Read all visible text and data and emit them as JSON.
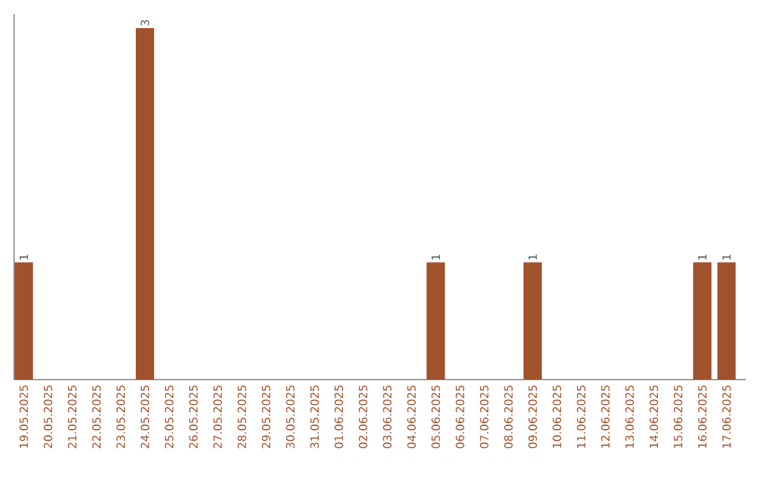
{
  "chart_data": {
    "type": "bar",
    "categories": [
      "19.05.2025",
      "20.05.2025",
      "21.05.2025",
      "22.05.2025",
      "23.05.2025",
      "24.05.2025",
      "25.05.2025",
      "26.05.2025",
      "27.05.2025",
      "28.05.2025",
      "29.05.2025",
      "30.05.2025",
      "31.05.2025",
      "01.06.2025",
      "02.06.2025",
      "03.06.2025",
      "04.06.2025",
      "05.06.2025",
      "06.06.2025",
      "07.06.2025",
      "08.06.2025",
      "09.06.2025",
      "10.06.2025",
      "11.06.2025",
      "12.06.2025",
      "13.06.2025",
      "14.06.2025",
      "15.06.2025",
      "16.06.2025",
      "17.06.2025"
    ],
    "values": [
      1,
      0,
      0,
      0,
      0,
      3,
      0,
      0,
      0,
      0,
      0,
      0,
      0,
      0,
      0,
      0,
      0,
      1,
      0,
      0,
      0,
      1,
      0,
      0,
      0,
      0,
      0,
      0,
      1,
      1
    ],
    "value_labels": [
      "1",
      null,
      null,
      null,
      null,
      "3",
      null,
      null,
      null,
      null,
      null,
      null,
      null,
      null,
      null,
      null,
      null,
      "1",
      null,
      null,
      null,
      "1",
      null,
      null,
      null,
      null,
      null,
      null,
      "1",
      "1"
    ],
    "color": "#a0522d",
    "tick_labels": "x"
  }
}
